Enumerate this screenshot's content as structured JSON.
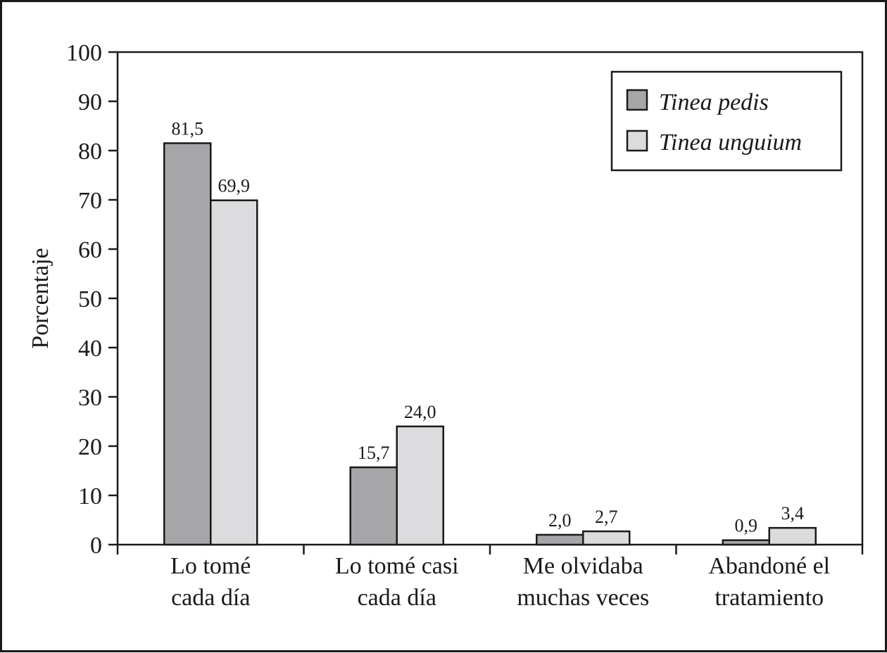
{
  "chart_data": {
    "type": "bar",
    "title": "",
    "xlabel": "",
    "ylabel": "Porcentaje",
    "ylim": [
      0,
      100
    ],
    "yticks": [
      "0",
      "10",
      "20",
      "30",
      "40",
      "50",
      "60",
      "70",
      "80",
      "90",
      "100"
    ],
    "grid": false,
    "legend_position": "top-right",
    "categories": [
      [
        "Lo tomé",
        "cada día"
      ],
      [
        "Lo tomé casi",
        "cada día"
      ],
      [
        "Me olvidaba",
        "muchas veces"
      ],
      [
        "Abandoné el",
        "tratamiento"
      ]
    ],
    "series": [
      {
        "name": "Tinea pedis",
        "color": "#a6a6a9",
        "values": [
          81.5,
          15.7,
          2.0,
          0.9
        ],
        "labels": [
          "81,5",
          "15,7",
          "2,0",
          "0,9"
        ]
      },
      {
        "name": "Tinea unguium",
        "color": "#dcdcde",
        "values": [
          69.9,
          24.0,
          2.7,
          3.4
        ],
        "labels": [
          "69,9",
          "24,0",
          "2,7",
          "3,4"
        ]
      }
    ]
  }
}
